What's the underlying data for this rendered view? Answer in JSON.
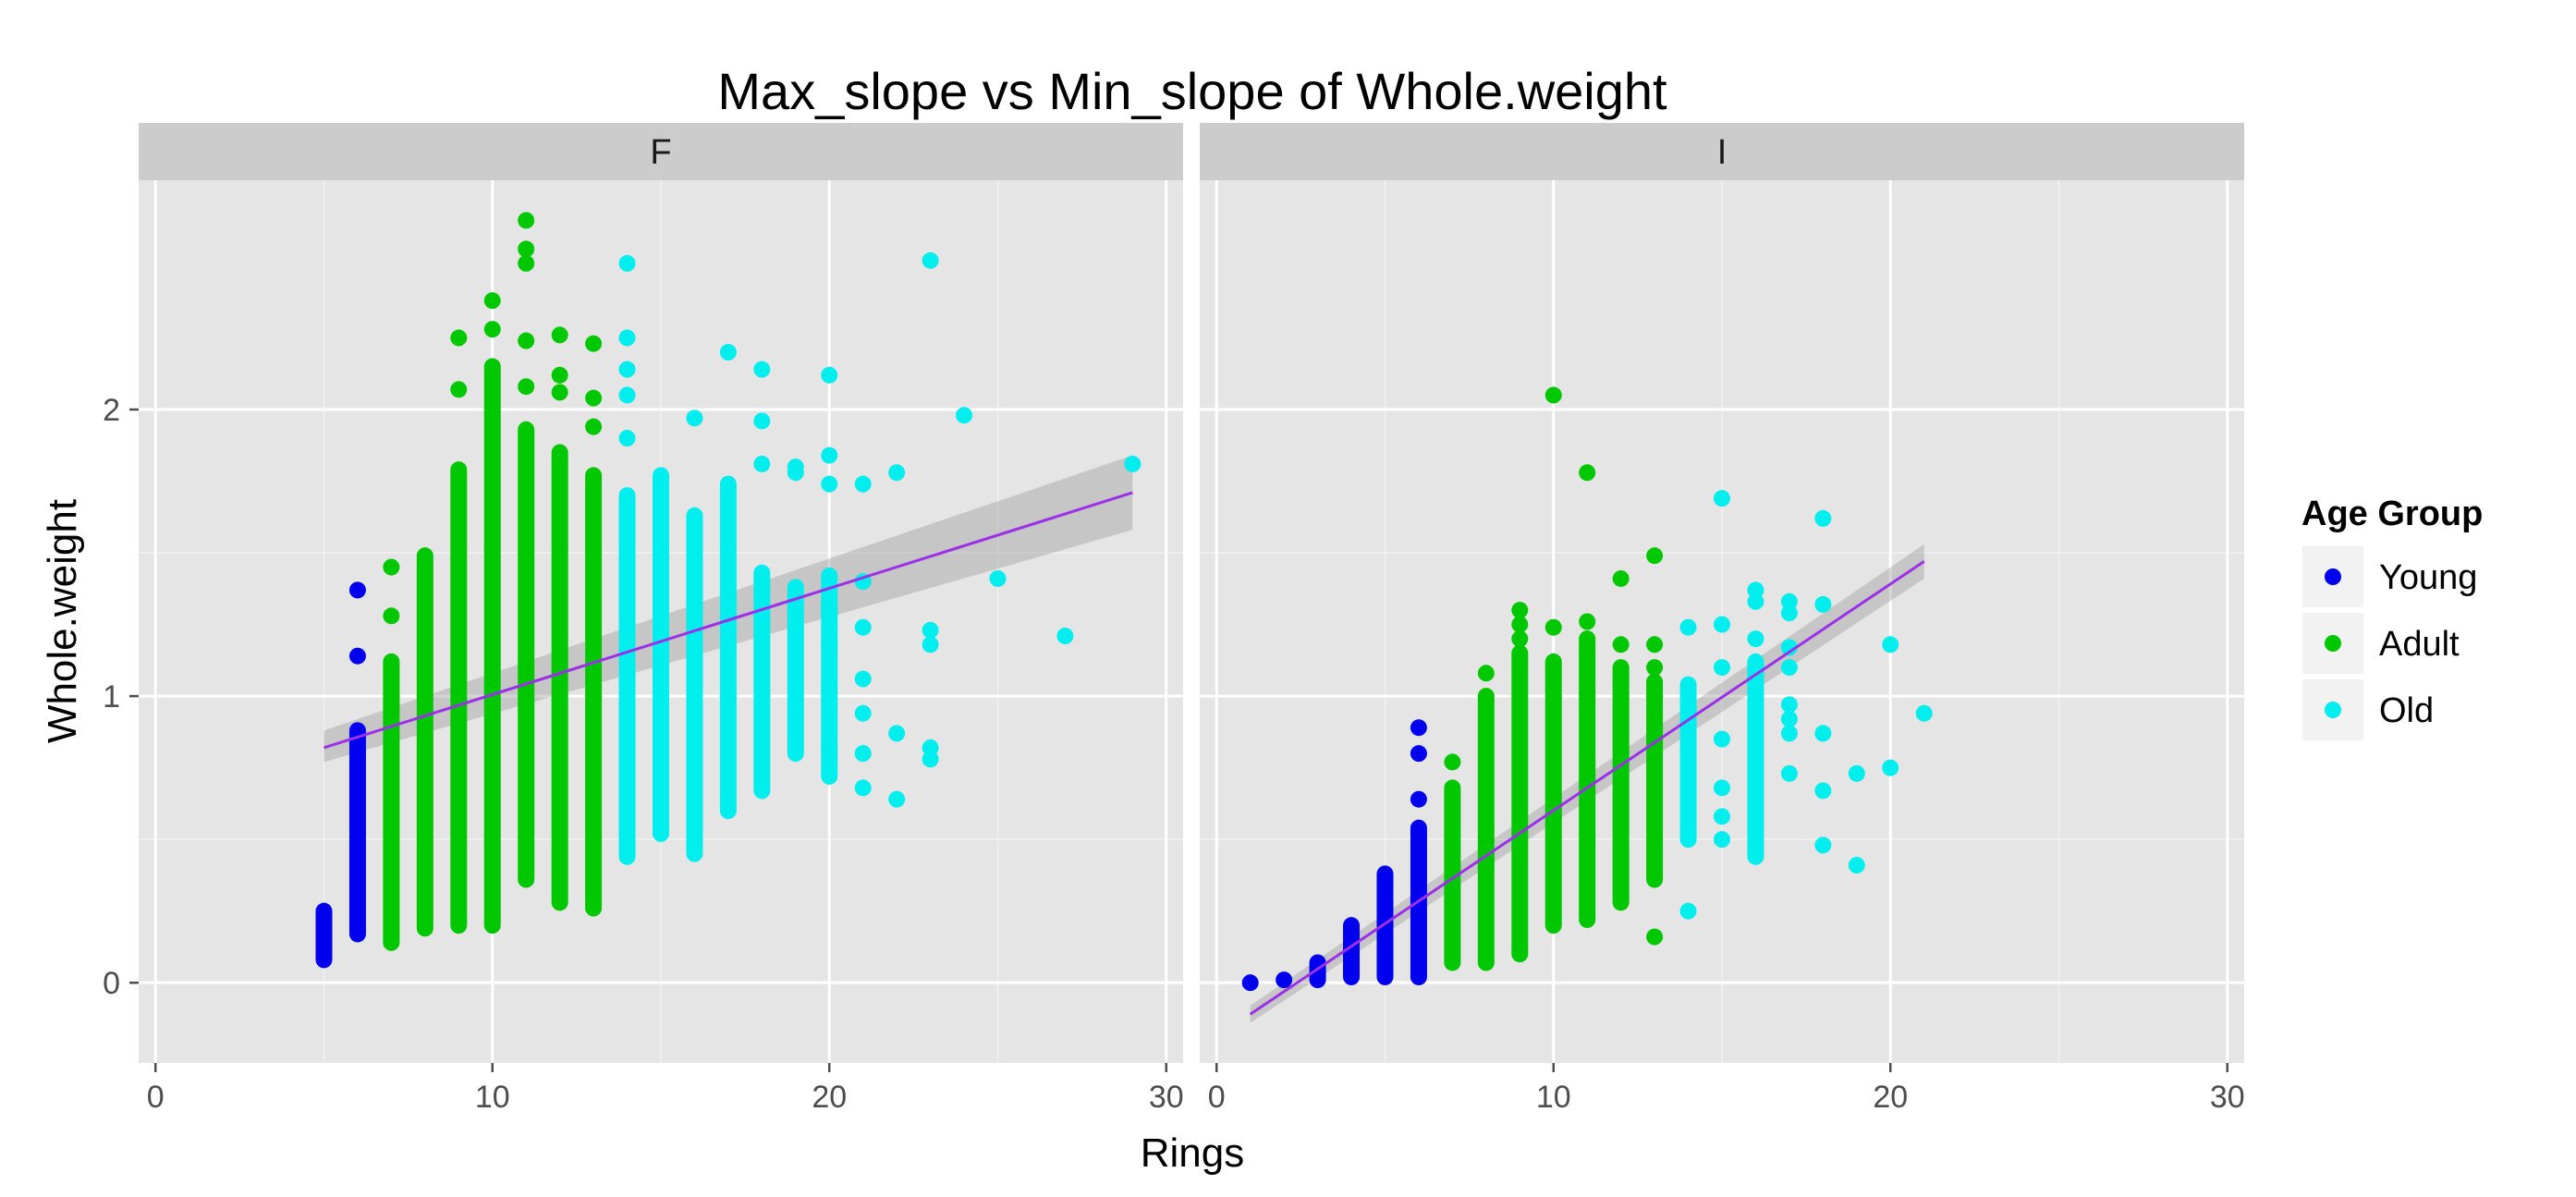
{
  "chart_data": {
    "type": "scatter",
    "title": "Max_slope vs Min_slope of Whole.weight",
    "xlabel": "Rings",
    "ylabel": "Whole.weight",
    "xlim": [
      -0.5,
      30.5
    ],
    "ylim": [
      -0.28,
      2.8
    ],
    "x_ticks": [
      0,
      10,
      20,
      30
    ],
    "x_tick_labels": [
      "0",
      "10",
      "20",
      "30"
    ],
    "y_ticks": [
      0,
      1,
      2
    ],
    "y_tick_labels": [
      "0",
      "1",
      "2"
    ],
    "grid": true,
    "legend": {
      "title": "Age Group",
      "position": "right",
      "entries": [
        {
          "name": "Young",
          "color": "#0000ee"
        },
        {
          "name": "Adult",
          "color": "#00c800"
        },
        {
          "name": "Old",
          "color": "#00eeee"
        }
      ]
    },
    "regression_color": "#9b30e6",
    "panels": [
      {
        "facet": "F",
        "ranges": [
          {
            "x": 5,
            "group": "Young",
            "min": 0.08,
            "max": 0.25
          },
          {
            "x": 6,
            "group": "Young",
            "min": 0.17,
            "max": 0.88
          },
          {
            "x": 7,
            "group": "Adult",
            "min": 0.14,
            "max": 1.12
          },
          {
            "x": 8,
            "group": "Adult",
            "min": 0.19,
            "max": 1.49
          },
          {
            "x": 9,
            "group": "Adult",
            "min": 0.2,
            "max": 1.79
          },
          {
            "x": 10,
            "group": "Adult",
            "min": 0.2,
            "max": 2.15
          },
          {
            "x": 11,
            "group": "Adult",
            "min": 0.36,
            "max": 1.93
          },
          {
            "x": 12,
            "group": "Adult",
            "min": 0.28,
            "max": 1.85
          },
          {
            "x": 13,
            "group": "Adult",
            "min": 0.26,
            "max": 1.77
          },
          {
            "x": 14,
            "group": "Old",
            "min": 0.44,
            "max": 1.7
          },
          {
            "x": 15,
            "group": "Old",
            "min": 0.52,
            "max": 1.77
          },
          {
            "x": 16,
            "group": "Old",
            "min": 0.45,
            "max": 1.63
          },
          {
            "x": 17,
            "group": "Old",
            "min": 0.6,
            "max": 1.74
          },
          {
            "x": 18,
            "group": "Old",
            "min": 0.67,
            "max": 1.43
          },
          {
            "x": 19,
            "group": "Old",
            "min": 0.8,
            "max": 1.38
          },
          {
            "x": 20,
            "group": "Old",
            "min": 0.72,
            "max": 1.42
          }
        ],
        "points": [
          {
            "x": 6,
            "y": 1.37,
            "group": "Young"
          },
          {
            "x": 6,
            "y": 1.14,
            "group": "Young"
          },
          {
            "x": 7,
            "y": 1.28,
            "group": "Adult"
          },
          {
            "x": 7,
            "y": 1.45,
            "group": "Adult"
          },
          {
            "x": 9,
            "y": 2.25,
            "group": "Adult"
          },
          {
            "x": 9,
            "y": 2.07,
            "group": "Adult"
          },
          {
            "x": 10,
            "y": 2.38,
            "group": "Adult"
          },
          {
            "x": 10,
            "y": 2.28,
            "group": "Adult"
          },
          {
            "x": 11,
            "y": 2.66,
            "group": "Adult"
          },
          {
            "x": 11,
            "y": 2.56,
            "group": "Adult"
          },
          {
            "x": 11,
            "y": 2.51,
            "group": "Adult"
          },
          {
            "x": 11,
            "y": 2.24,
            "group": "Adult"
          },
          {
            "x": 11,
            "y": 2.08,
            "group": "Adult"
          },
          {
            "x": 12,
            "y": 2.26,
            "group": "Adult"
          },
          {
            "x": 12,
            "y": 2.12,
            "group": "Adult"
          },
          {
            "x": 12,
            "y": 2.06,
            "group": "Adult"
          },
          {
            "x": 13,
            "y": 2.23,
            "group": "Adult"
          },
          {
            "x": 13,
            "y": 2.04,
            "group": "Adult"
          },
          {
            "x": 13,
            "y": 1.94,
            "group": "Adult"
          },
          {
            "x": 14,
            "y": 2.51,
            "group": "Old"
          },
          {
            "x": 14,
            "y": 2.25,
            "group": "Old"
          },
          {
            "x": 14,
            "y": 2.14,
            "group": "Old"
          },
          {
            "x": 14,
            "y": 2.05,
            "group": "Old"
          },
          {
            "x": 14,
            "y": 1.9,
            "group": "Old"
          },
          {
            "x": 16,
            "y": 1.97,
            "group": "Old"
          },
          {
            "x": 17,
            "y": 2.2,
            "group": "Old"
          },
          {
            "x": 18,
            "y": 2.14,
            "group": "Old"
          },
          {
            "x": 18,
            "y": 1.96,
            "group": "Old"
          },
          {
            "x": 18,
            "y": 1.81,
            "group": "Old"
          },
          {
            "x": 19,
            "y": 1.8,
            "group": "Old"
          },
          {
            "x": 19,
            "y": 1.78,
            "group": "Old"
          },
          {
            "x": 20,
            "y": 2.12,
            "group": "Old"
          },
          {
            "x": 20,
            "y": 1.84,
            "group": "Old"
          },
          {
            "x": 20,
            "y": 1.74,
            "group": "Old"
          },
          {
            "x": 20,
            "y": 1.3,
            "group": "Old"
          },
          {
            "x": 20,
            "y": 1.18,
            "group": "Old"
          },
          {
            "x": 20,
            "y": 1.03,
            "group": "Old"
          },
          {
            "x": 20,
            "y": 0.82,
            "group": "Old"
          },
          {
            "x": 21,
            "y": 1.74,
            "group": "Old"
          },
          {
            "x": 21,
            "y": 1.4,
            "group": "Old"
          },
          {
            "x": 21,
            "y": 1.24,
            "group": "Old"
          },
          {
            "x": 21,
            "y": 1.06,
            "group": "Old"
          },
          {
            "x": 21,
            "y": 0.94,
            "group": "Old"
          },
          {
            "x": 21,
            "y": 0.8,
            "group": "Old"
          },
          {
            "x": 21,
            "y": 0.68,
            "group": "Old"
          },
          {
            "x": 22,
            "y": 1.78,
            "group": "Old"
          },
          {
            "x": 22,
            "y": 0.87,
            "group": "Old"
          },
          {
            "x": 22,
            "y": 0.64,
            "group": "Old"
          },
          {
            "x": 23,
            "y": 2.52,
            "group": "Old"
          },
          {
            "x": 23,
            "y": 1.23,
            "group": "Old"
          },
          {
            "x": 23,
            "y": 1.18,
            "group": "Old"
          },
          {
            "x": 23,
            "y": 0.82,
            "group": "Old"
          },
          {
            "x": 23,
            "y": 0.78,
            "group": "Old"
          },
          {
            "x": 24,
            "y": 1.98,
            "group": "Old"
          },
          {
            "x": 25,
            "y": 1.41,
            "group": "Old"
          },
          {
            "x": 27,
            "y": 1.21,
            "group": "Old"
          },
          {
            "x": 29,
            "y": 1.81,
            "group": "Old"
          }
        ],
        "fit": {
          "x": [
            5,
            29
          ],
          "y": [
            0.82,
            1.71
          ],
          "ci_low": [
            0.77,
            1.58
          ],
          "ci_high": [
            0.88,
            1.84
          ]
        }
      },
      {
        "facet": "I",
        "ranges": [
          {
            "x": 3,
            "group": "Young",
            "min": 0.01,
            "max": 0.07
          },
          {
            "x": 4,
            "group": "Young",
            "min": 0.02,
            "max": 0.2
          },
          {
            "x": 5,
            "group": "Young",
            "min": 0.02,
            "max": 0.38
          },
          {
            "x": 6,
            "group": "Young",
            "min": 0.02,
            "max": 0.54
          },
          {
            "x": 7,
            "group": "Adult",
            "min": 0.07,
            "max": 0.68
          },
          {
            "x": 8,
            "group": "Adult",
            "min": 0.07,
            "max": 1.0
          },
          {
            "x": 9,
            "group": "Adult",
            "min": 0.1,
            "max": 1.15
          },
          {
            "x": 10,
            "group": "Adult",
            "min": 0.2,
            "max": 1.12
          },
          {
            "x": 11,
            "group": "Adult",
            "min": 0.22,
            "max": 1.2
          },
          {
            "x": 12,
            "group": "Adult",
            "min": 0.28,
            "max": 1.1
          },
          {
            "x": 13,
            "group": "Adult",
            "min": 0.36,
            "max": 1.05
          },
          {
            "x": 14,
            "group": "Old",
            "min": 0.5,
            "max": 1.04
          },
          {
            "x": 16,
            "group": "Old",
            "min": 0.44,
            "max": 1.12
          }
        ],
        "points": [
          {
            "x": 1,
            "y": 0.0,
            "group": "Young"
          },
          {
            "x": 2,
            "y": 0.01,
            "group": "Young"
          },
          {
            "x": 6,
            "y": 0.89,
            "group": "Young"
          },
          {
            "x": 6,
            "y": 0.8,
            "group": "Young"
          },
          {
            "x": 6,
            "y": 0.64,
            "group": "Young"
          },
          {
            "x": 7,
            "y": 0.77,
            "group": "Adult"
          },
          {
            "x": 8,
            "y": 1.08,
            "group": "Adult"
          },
          {
            "x": 9,
            "y": 1.3,
            "group": "Adult"
          },
          {
            "x": 9,
            "y": 1.25,
            "group": "Adult"
          },
          {
            "x": 9,
            "y": 1.2,
            "group": "Adult"
          },
          {
            "x": 10,
            "y": 2.05,
            "group": "Adult"
          },
          {
            "x": 10,
            "y": 1.24,
            "group": "Adult"
          },
          {
            "x": 11,
            "y": 1.78,
            "group": "Adult"
          },
          {
            "x": 11,
            "y": 1.26,
            "group": "Adult"
          },
          {
            "x": 12,
            "y": 1.41,
            "group": "Adult"
          },
          {
            "x": 12,
            "y": 1.18,
            "group": "Adult"
          },
          {
            "x": 13,
            "y": 1.49,
            "group": "Adult"
          },
          {
            "x": 13,
            "y": 1.18,
            "group": "Adult"
          },
          {
            "x": 13,
            "y": 1.1,
            "group": "Adult"
          },
          {
            "x": 13,
            "y": 0.16,
            "group": "Adult"
          },
          {
            "x": 14,
            "y": 1.24,
            "group": "Old"
          },
          {
            "x": 14,
            "y": 0.25,
            "group": "Old"
          },
          {
            "x": 15,
            "y": 1.69,
            "group": "Old"
          },
          {
            "x": 15,
            "y": 1.25,
            "group": "Old"
          },
          {
            "x": 15,
            "y": 1.1,
            "group": "Old"
          },
          {
            "x": 15,
            "y": 0.85,
            "group": "Old"
          },
          {
            "x": 15,
            "y": 0.68,
            "group": "Old"
          },
          {
            "x": 15,
            "y": 0.58,
            "group": "Old"
          },
          {
            "x": 15,
            "y": 0.5,
            "group": "Old"
          },
          {
            "x": 16,
            "y": 1.37,
            "group": "Old"
          },
          {
            "x": 16,
            "y": 1.33,
            "group": "Old"
          },
          {
            "x": 16,
            "y": 1.2,
            "group": "Old"
          },
          {
            "x": 17,
            "y": 1.33,
            "group": "Old"
          },
          {
            "x": 17,
            "y": 1.29,
            "group": "Old"
          },
          {
            "x": 17,
            "y": 1.17,
            "group": "Old"
          },
          {
            "x": 17,
            "y": 1.1,
            "group": "Old"
          },
          {
            "x": 17,
            "y": 0.97,
            "group": "Old"
          },
          {
            "x": 17,
            "y": 0.92,
            "group": "Old"
          },
          {
            "x": 17,
            "y": 0.87,
            "group": "Old"
          },
          {
            "x": 17,
            "y": 0.73,
            "group": "Old"
          },
          {
            "x": 18,
            "y": 1.62,
            "group": "Old"
          },
          {
            "x": 18,
            "y": 1.32,
            "group": "Old"
          },
          {
            "x": 18,
            "y": 0.87,
            "group": "Old"
          },
          {
            "x": 18,
            "y": 0.67,
            "group": "Old"
          },
          {
            "x": 18,
            "y": 0.48,
            "group": "Old"
          },
          {
            "x": 19,
            "y": 0.73,
            "group": "Old"
          },
          {
            "x": 19,
            "y": 0.41,
            "group": "Old"
          },
          {
            "x": 20,
            "y": 1.18,
            "group": "Old"
          },
          {
            "x": 20,
            "y": 0.75,
            "group": "Old"
          },
          {
            "x": 21,
            "y": 0.94,
            "group": "Old"
          }
        ],
        "fit": {
          "x": [
            1,
            21
          ],
          "y": [
            -0.11,
            1.47
          ],
          "ci_low": [
            -0.14,
            1.41
          ],
          "ci_high": [
            -0.08,
            1.53
          ]
        }
      }
    ]
  }
}
